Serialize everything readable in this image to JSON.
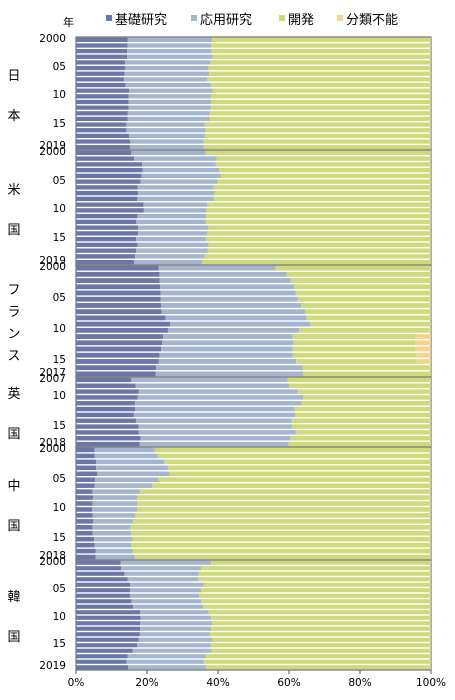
{
  "chart_data": {
    "type": "bar",
    "orientation": "horizontal",
    "stacked": true,
    "unit_label": "年",
    "colors": {
      "基礎研究": "#6b77a6",
      "応用研究": "#a4b6cf",
      "開発": "#cfda7d",
      "分類不能": "#f5d58e"
    },
    "legend": [
      "基礎研究",
      "応用研究",
      "開発",
      "分類不能"
    ],
    "xlim": [
      0,
      100
    ],
    "x_ticks": [
      "0%",
      "20%",
      "40%",
      "60%",
      "80%",
      "100%"
    ],
    "panels": [
      {
        "country_label": [
          "日",
          "本"
        ],
        "year_labels": [
          "2000",
          "05",
          "10",
          "15",
          "2019"
        ],
        "years": [
          2000,
          2001,
          2002,
          2003,
          2004,
          2005,
          2006,
          2007,
          2008,
          2009,
          2010,
          2011,
          2012,
          2013,
          2014,
          2015,
          2016,
          2017,
          2018,
          2019
        ],
        "series": [
          {
            "name": "基礎研究",
            "values": [
              14.6,
              14.5,
              14.4,
              14.4,
              13.8,
              13.9,
              13.7,
              13.5,
              14.0,
              15.0,
              14.8,
              14.8,
              14.8,
              14.6,
              14.6,
              14.2,
              14.2,
              15.0,
              15.3,
              15.2
            ]
          },
          {
            "name": "応用研究",
            "values": [
              23.8,
              23.6,
              23.8,
              24.1,
              24.1,
              23.4,
              23.8,
              23.4,
              24.0,
              23.5,
              23.2,
              23.3,
              23.3,
              23.0,
              23.0,
              22.0,
              22.3,
              21.3,
              20.7,
              20.8
            ]
          },
          {
            "name": "開発",
            "values": [
              61.6,
              61.9,
              61.8,
              61.5,
              62.1,
              62.7,
              62.5,
              63.1,
              62.0,
              61.5,
              62.0,
              61.9,
              61.9,
              62.4,
              62.4,
              63.8,
              63.5,
              63.7,
              64.0,
              64.0
            ]
          },
          {
            "name": "分類不能",
            "values": [
              0,
              0,
              0,
              0,
              0,
              0,
              0,
              0,
              0,
              0,
              0,
              0,
              0,
              0,
              0,
              0,
              0,
              0,
              0,
              0
            ]
          }
        ]
      },
      {
        "country_label": [
          "米",
          "国"
        ],
        "year_labels": [
          "2000",
          "05",
          "10",
          "15",
          "2019"
        ],
        "years": [
          2000,
          2001,
          2002,
          2003,
          2004,
          2005,
          2006,
          2007,
          2008,
          2009,
          2010,
          2011,
          2012,
          2013,
          2014,
          2015,
          2016,
          2017,
          2018,
          2019
        ],
        "series": [
          {
            "name": "基礎研究",
            "values": [
              15.6,
              16.4,
              18.6,
              18.8,
              18.5,
              18.2,
              17.4,
              17.5,
              17.3,
              19.0,
              19.1,
              17.3,
              17.0,
              17.5,
              17.5,
              16.9,
              17.3,
              16.9,
              16.6,
              16.4
            ]
          },
          {
            "name": "応用研究",
            "values": [
              21.0,
              23.2,
              20.8,
              21.5,
              22.3,
              21.7,
              21.3,
              21.5,
              21.6,
              18.0,
              17.7,
              19.4,
              19.6,
              19.8,
              19.5,
              19.7,
              20.1,
              20.2,
              19.6,
              19.2
            ]
          },
          {
            "name": "開発",
            "values": [
              63.4,
              60.4,
              60.6,
              59.7,
              59.2,
              60.1,
              61.3,
              61.0,
              61.1,
              63.0,
              63.2,
              63.3,
              63.4,
              62.7,
              63.0,
              63.4,
              62.6,
              62.9,
              63.8,
              64.4
            ]
          },
          {
            "name": "分類不能",
            "values": [
              0,
              0,
              0,
              0,
              0,
              0,
              0,
              0,
              0,
              0,
              0,
              0,
              0,
              0,
              0,
              0,
              0,
              0,
              0,
              0
            ]
          }
        ]
      },
      {
        "country_label": [
          "フ",
          "ラ",
          "ン",
          "ス"
        ],
        "year_labels": [
          "2000",
          "05",
          "10",
          "15",
          "2017"
        ],
        "years": [
          2000,
          2001,
          2002,
          2003,
          2004,
          2005,
          2006,
          2007,
          2008,
          2009,
          2010,
          2011,
          2012,
          2013,
          2014,
          2015,
          2016,
          2017
        ],
        "series": [
          {
            "name": "基礎研究",
            "values": [
              23.3,
              23.5,
              23.6,
              23.7,
              23.8,
              23.9,
              24.0,
              24.1,
              25.2,
              26.5,
              25.9,
              24.5,
              24.3,
              24.0,
              23.5,
              23.3,
              22.6,
              22.4
            ]
          },
          {
            "name": "応用研究",
            "values": [
              32.9,
              35.8,
              36.9,
              37.8,
              38.1,
              38.6,
              39.4,
              40.5,
              39.7,
              39.6,
              37.0,
              36.5,
              37.0,
              37.0,
              37.5,
              38.7,
              41.2,
              41.6
            ]
          },
          {
            "name": "開発",
            "values": [
              43.8,
              40.7,
              39.5,
              38.5,
              38.1,
              37.5,
              36.6,
              35.4,
              35.1,
              33.9,
              37.1,
              34.5,
              34.4,
              34.7,
              35.0,
              34.0,
              36.2,
              36.0
            ]
          },
          {
            "name": "分類不能",
            "values": [
              0,
              0,
              0,
              0,
              0,
              0,
              0,
              0,
              0,
              0,
              0,
              4.5,
              4.3,
              4.3,
              4.0,
              4.0,
              0,
              0
            ]
          }
        ]
      },
      {
        "country_label": [
          "英",
          "国"
        ],
        "year_labels": [
          "2007",
          "10",
          "15",
          "2018"
        ],
        "years": [
          2007,
          2008,
          2009,
          2010,
          2011,
          2012,
          2013,
          2014,
          2015,
          2016,
          2017,
          2018
        ],
        "series": [
          {
            "name": "基礎研究",
            "values": [
              15.6,
              16.8,
              17.7,
              17.4,
              16.6,
              16.7,
              16.3,
              16.9,
              17.6,
              17.6,
              18.2,
              17.9
            ]
          },
          {
            "name": "応用研究",
            "values": [
              44.0,
              43.2,
              44.7,
              46.6,
              46.9,
              44.9,
              45.5,
              43.9,
              43.2,
              44.3,
              42.3,
              42.0
            ]
          },
          {
            "name": "開発",
            "values": [
              40.4,
              40.0,
              37.6,
              36.0,
              36.5,
              38.4,
              38.2,
              39.2,
              39.2,
              38.1,
              39.5,
              40.1
            ]
          },
          {
            "name": "分類不能",
            "values": [
              0,
              0,
              0,
              0,
              0,
              0,
              0,
              0,
              0,
              0,
              0,
              0
            ]
          }
        ]
      },
      {
        "country_label": [
          "中",
          "国"
        ],
        "year_labels": [
          "2000",
          "05",
          "10",
          "15",
          "2018"
        ],
        "years": [
          2000,
          2001,
          2002,
          2003,
          2004,
          2005,
          2006,
          2007,
          2008,
          2009,
          2010,
          2011,
          2012,
          2013,
          2014,
          2015,
          2016,
          2017,
          2018
        ],
        "series": [
          {
            "name": "基礎研究",
            "values": [
              5.2,
              5.3,
              5.7,
              5.7,
              6.0,
              5.4,
              5.2,
              4.7,
              4.8,
              4.7,
              4.6,
              4.7,
              4.8,
              4.7,
              4.7,
              5.1,
              5.2,
              5.5,
              5.5
            ]
          },
          {
            "name": "応用研究",
            "values": [
              17.0,
              17.7,
              19.2,
              20.2,
              20.4,
              17.7,
              16.3,
              13.3,
              12.5,
              12.6,
              12.7,
              11.9,
              11.3,
              10.7,
              10.8,
              10.8,
              10.3,
              10.5,
              11.1
            ]
          },
          {
            "name": "開発",
            "values": [
              77.8,
              77.0,
              75.1,
              74.1,
              73.6,
              76.9,
              78.5,
              82.0,
              82.7,
              82.7,
              82.7,
              83.4,
              83.9,
              84.6,
              84.5,
              84.1,
              84.5,
              84.0,
              83.4
            ]
          },
          {
            "name": "分類不能",
            "values": [
              0,
              0,
              0,
              0,
              0,
              0,
              0,
              0,
              0,
              0,
              0,
              0,
              0,
              0,
              0,
              0,
              0,
              0,
              0
            ]
          }
        ]
      },
      {
        "country_label": [
          "韓",
          "国"
        ],
        "year_labels": [
          "2000",
          "05",
          "10",
          "15",
          "2019"
        ],
        "years": [
          2000,
          2001,
          2002,
          2003,
          2004,
          2005,
          2006,
          2007,
          2008,
          2009,
          2010,
          2011,
          2012,
          2013,
          2014,
          2015,
          2016,
          2017,
          2018,
          2019
        ],
        "series": [
          {
            "name": "基礎研究",
            "values": [
              12.6,
              12.7,
              13.7,
              14.5,
              15.3,
              15.2,
              15.2,
              15.7,
              16.1,
              18.1,
              18.2,
              18.1,
              18.1,
              18.0,
              17.6,
              17.2,
              16.0,
              14.5,
              14.2,
              14.7
            ]
          },
          {
            "name": "応用研究",
            "values": [
              25.5,
              22.5,
              20.8,
              20.1,
              20.7,
              20.1,
              19.5,
              19.6,
              19.7,
              19.2,
              19.9,
              20.3,
              20.0,
              19.6,
              20.9,
              20.8,
              22.2,
              22.0,
              21.8,
              22.0
            ]
          },
          {
            "name": "開発",
            "values": [
              61.9,
              64.8,
              65.5,
              65.4,
              64.0,
              64.7,
              65.3,
              64.7,
              64.2,
              62.7,
              61.9,
              61.6,
              61.9,
              62.4,
              61.5,
              62.0,
              61.8,
              63.5,
              64.0,
              63.3
            ]
          },
          {
            "name": "分類不能",
            "values": [
              0,
              0,
              0,
              0,
              0,
              0,
              0,
              0,
              0,
              0,
              0,
              0,
              0,
              0,
              0,
              0,
              0,
              0,
              0,
              0
            ]
          }
        ]
      }
    ]
  }
}
